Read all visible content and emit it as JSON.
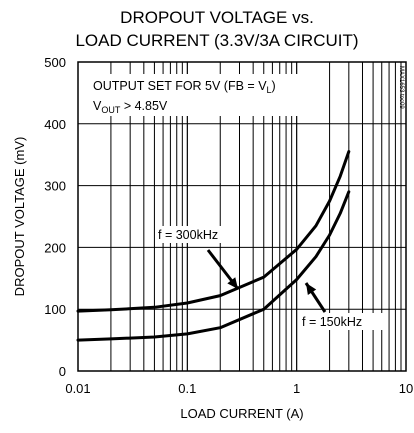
{
  "chart_data": {
    "type": "line",
    "title_line1": "DROPOUT VOLTAGE vs.",
    "title_line2": "LOAD CURRENT (3.3V/3A CIRCUIT)",
    "xlabel": "LOAD CURRENT (A)",
    "ylabel": "DROPOUT VOLTAGE (mV)",
    "xscale": "log",
    "xlim": [
      0.01,
      10
    ],
    "ylim": [
      0,
      500
    ],
    "x_ticks": [
      0.01,
      0.1,
      1,
      10
    ],
    "x_tick_labels": [
      "0.01",
      "0.1",
      "1",
      "10"
    ],
    "y_ticks": [
      0,
      100,
      200,
      300,
      400,
      500
    ],
    "y_tick_labels": [
      "0",
      "100",
      "200",
      "300",
      "400",
      "500"
    ],
    "grid": true,
    "annotation_line1": "OUTPUT SET FOR 5V (FB = V",
    "annotation_line1_sub": "L",
    "annotation_line1_end": ")",
    "annotation_line2_v": "V",
    "annotation_line2_sub": "OUT",
    "annotation_line2_rest": " > 4.85V",
    "watermark": "MAX1653 toc09",
    "series": [
      {
        "name": "f = 300kHz",
        "x": [
          0.01,
          0.02,
          0.05,
          0.1,
          0.2,
          0.5,
          1,
          1.5,
          2,
          2.5,
          3
        ],
        "y": [
          97,
          99,
          103,
          110,
          122,
          152,
          197,
          235,
          275,
          315,
          355
        ]
      },
      {
        "name": "f = 150kHz",
        "x": [
          0.01,
          0.02,
          0.05,
          0.1,
          0.2,
          0.5,
          1,
          1.5,
          2,
          2.5,
          3
        ],
        "y": [
          50,
          52,
          55,
          60,
          70,
          100,
          148,
          185,
          220,
          255,
          290
        ]
      }
    ]
  }
}
